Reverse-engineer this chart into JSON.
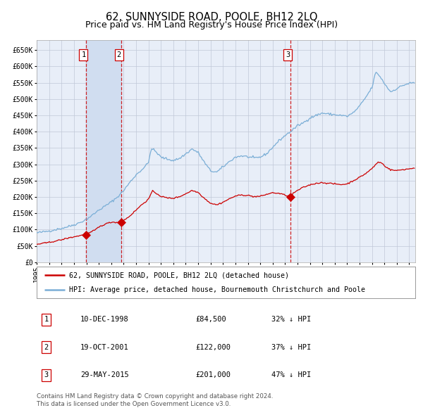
{
  "title": "62, SUNNYSIDE ROAD, POOLE, BH12 2LQ",
  "subtitle": "Price paid vs. HM Land Registry's House Price Index (HPI)",
  "legend_label_red": "62, SUNNYSIDE ROAD, POOLE, BH12 2LQ (detached house)",
  "legend_label_blue": "HPI: Average price, detached house, Bournemouth Christchurch and Poole",
  "footer_line1": "Contains HM Land Registry data © Crown copyright and database right 2024.",
  "footer_line2": "This data is licensed under the Open Government Licence v3.0.",
  "transactions": [
    {
      "label": "1",
      "date": "10-DEC-1998",
      "price": 84500,
      "note": "32% ↓ HPI"
    },
    {
      "label": "2",
      "date": "19-OCT-2001",
      "price": 122000,
      "note": "37% ↓ HPI"
    },
    {
      "label": "3",
      "date": "29-MAY-2015",
      "price": 201000,
      "note": "47% ↓ HPI"
    }
  ],
  "transaction_dates_numeric": [
    1998.94,
    2001.8,
    2015.41
  ],
  "transaction_prices": [
    84500,
    122000,
    201000
  ],
  "ylim": [
    0,
    680000
  ],
  "yticks": [
    0,
    50000,
    100000,
    150000,
    200000,
    250000,
    300000,
    350000,
    400000,
    450000,
    500000,
    550000,
    600000,
    650000
  ],
  "xlim_start": 1995.0,
  "xlim_end": 2025.5,
  "background_color": "#ffffff",
  "plot_bg_color": "#e8eef8",
  "grid_color": "#c0c8d8",
  "red_color": "#cc0000",
  "blue_color": "#7aaed6",
  "shade_color": "#d0ddf0",
  "dashed_color": "#cc0000",
  "title_fontsize": 10.5,
  "subtitle_fontsize": 9,
  "tick_fontsize": 7,
  "label_fontsize": 7.5
}
